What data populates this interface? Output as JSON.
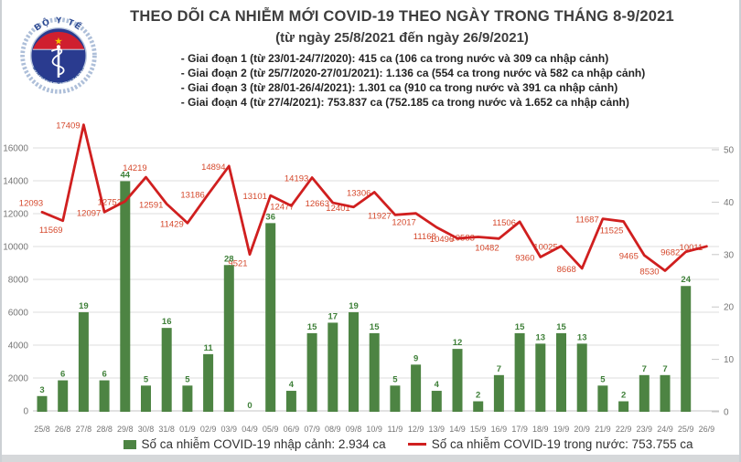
{
  "header": {
    "logo": {
      "top_text": "BỘ Y TẾ",
      "bottom_text": "MINISTRY OF HEALTH"
    },
    "title": "THEO DÕI CA NHIỄM MỚI COVID-19 THEO NGÀY TRONG THÁNG 8-9/2021",
    "subtitle": "(từ ngày 25/8/2021 đến ngày 26/9/2021)",
    "phases": [
      "- Giai đoạn 1 (từ 23/01-24/7/2020): 415 ca (106 ca trong nước và 309 ca nhập cảnh)",
      "- Giai đoạn 2 (từ 25/7/2020-27/01/2021): 1.136 ca (554 ca trong nước và 582 ca nhập cảnh)",
      "- Giai đoạn 3 (từ 28/01-26/4/2021): 1.301 ca (910 ca trong nước và 391 ca nhập cảnh)",
      "- Giai đoạn 4 (từ 27/4/2021): 753.837 ca (752.185 ca trong nước và 1.652 ca nhập cảnh)"
    ]
  },
  "chart_data": {
    "type": "combo",
    "title": "THEO DÕI CA NHIỄM MỚI COVID-19 THEO NGÀY TRONG THÁNG 8-9/2021",
    "grid": true,
    "legend_position": "bottom",
    "categories": [
      "25/8",
      "26/8",
      "27/8",
      "28/8",
      "29/8",
      "30/8",
      "31/8",
      "01/9",
      "02/9",
      "03/9",
      "04/9",
      "05/9",
      "06/9",
      "07/9",
      "08/9",
      "09/8",
      "10/9",
      "11/9",
      "12/9",
      "13/9",
      "14/9",
      "15/9",
      "16/9",
      "17/9",
      "18/9",
      "19/9",
      "20/9",
      "21/9",
      "22/9",
      "23/9",
      "24/9",
      "25/9",
      "26/9"
    ],
    "axes": {
      "left": {
        "min": 0,
        "max": 16000,
        "step": 2000
      },
      "right": {
        "min": 0,
        "max": 50,
        "step": 10
      }
    },
    "series": [
      {
        "name": "Số ca nhiễm COVID-19 nhập cảnh",
        "type": "bar",
        "axis": "right",
        "color": "#4d8443",
        "values": [
          3,
          6,
          19,
          6,
          44,
          5,
          16,
          5,
          11,
          28,
          0,
          36,
          4,
          15,
          17,
          19,
          15,
          5,
          9,
          4,
          12,
          2,
          7,
          15,
          13,
          15,
          13,
          5,
          2,
          7,
          7,
          24,
          null
        ]
      },
      {
        "name": "Số ca nhiễm COVID-19 trong nước",
        "type": "line",
        "axis": "left",
        "color": "#d01f1f",
        "values": [
          12093,
          11569,
          17409,
          12097,
          12752,
          14219,
          12591,
          11429,
          13186,
          14894,
          9521,
          13101,
          12477,
          14193,
          12663,
          12401,
          13306,
          11927,
          12017,
          11168,
          10496,
          10583,
          10482,
          11506,
          9360,
          10025,
          8668,
          11687,
          11525,
          9465,
          8530,
          9682,
          10011
        ],
        "label_side": [
          "a",
          "b",
          "m",
          "m",
          "m",
          "a",
          "m",
          "m",
          "m",
          "m",
          "b",
          "m",
          "n",
          "m",
          "m",
          "m",
          "m",
          "m",
          "b",
          "b",
          "m",
          "m",
          "b",
          "m",
          "m",
          "m",
          "m",
          "m",
          "b",
          "m",
          "m",
          "m",
          "m"
        ]
      }
    ]
  },
  "legend": {
    "imported": "Số ca nhiễm COVID-19 nhập cảnh: 2.934 ca",
    "domestic": "Số ca nhiễm COVID-19 trong nước: 753.755 ca"
  }
}
